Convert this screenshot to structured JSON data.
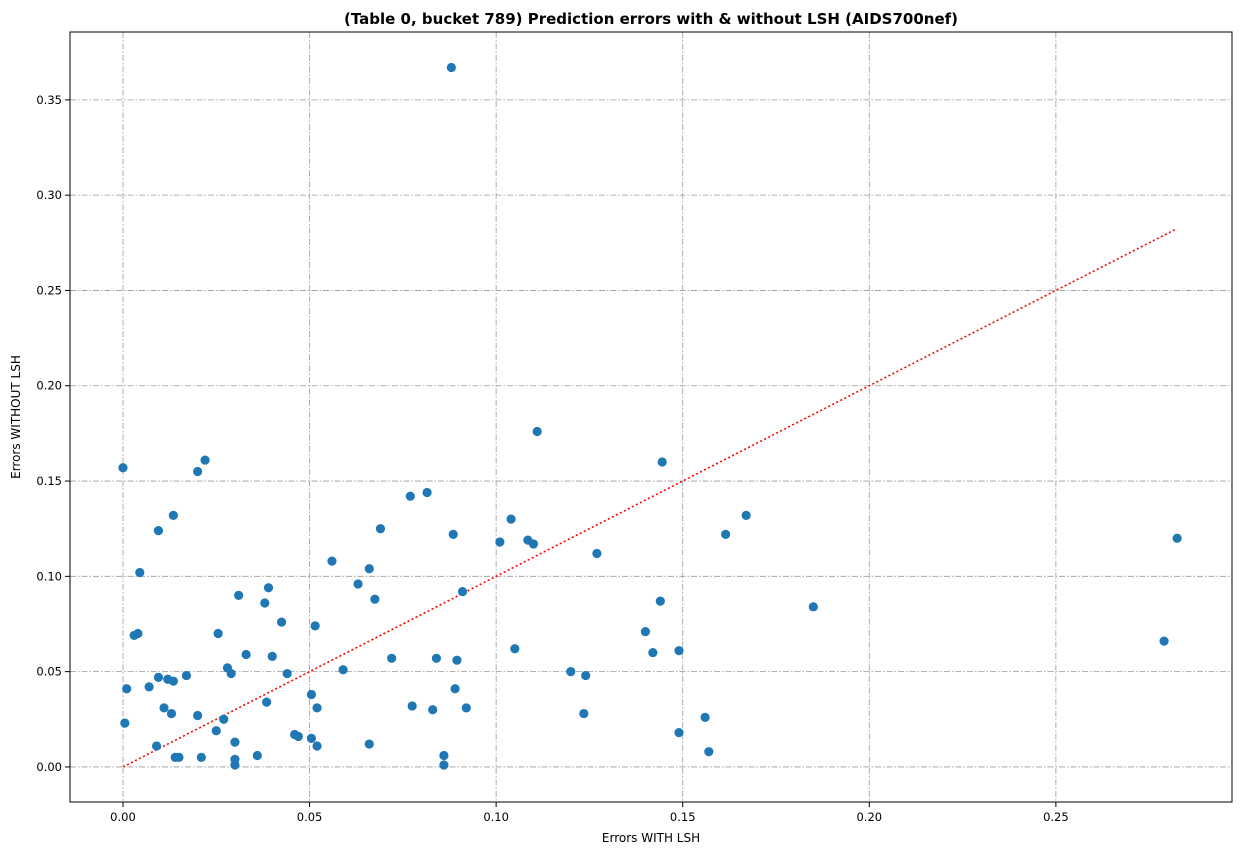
{
  "chart_data": {
    "type": "scatter",
    "title": "(Table 0, bucket 789) Prediction errors with & without LSH (AIDS700nef)",
    "xlabel": "Errors WITH LSH",
    "ylabel": "Errors WITHOUT LSH",
    "xlim": [
      -0.0142,
      0.2972
    ],
    "ylim": [
      -0.0184,
      0.3856
    ],
    "x_ticks": [
      0.0,
      0.05,
      0.1,
      0.15,
      0.2,
      0.25
    ],
    "x_tick_labels": [
      "0.00",
      "0.05",
      "0.10",
      "0.15",
      "0.20",
      "0.25"
    ],
    "y_ticks": [
      0.0,
      0.05,
      0.1,
      0.15,
      0.2,
      0.25,
      0.3,
      0.35
    ],
    "y_tick_labels": [
      "0.00",
      "0.05",
      "0.10",
      "0.15",
      "0.20",
      "0.25",
      "0.30",
      "0.35"
    ],
    "grid": true,
    "point_color": "#1f77b4",
    "reference_line": {
      "x": [
        0.0,
        0.282
      ],
      "y": [
        0.0,
        0.282
      ],
      "color": "#ff0000",
      "style": "dotted"
    },
    "points": [
      [
        0.0,
        0.157
      ],
      [
        0.0005,
        0.023
      ],
      [
        0.001,
        0.041
      ],
      [
        0.003,
        0.069
      ],
      [
        0.004,
        0.07
      ],
      [
        0.0045,
        0.102
      ],
      [
        0.007,
        0.042
      ],
      [
        0.009,
        0.011
      ],
      [
        0.0095,
        0.047
      ],
      [
        0.0095,
        0.124
      ],
      [
        0.011,
        0.031
      ],
      [
        0.012,
        0.046
      ],
      [
        0.013,
        0.028
      ],
      [
        0.0135,
        0.132
      ],
      [
        0.0135,
        0.045
      ],
      [
        0.014,
        0.005
      ],
      [
        0.015,
        0.005
      ],
      [
        0.017,
        0.048
      ],
      [
        0.02,
        0.155
      ],
      [
        0.02,
        0.027
      ],
      [
        0.021,
        0.005
      ],
      [
        0.022,
        0.161
      ],
      [
        0.025,
        0.019
      ],
      [
        0.0255,
        0.07
      ],
      [
        0.027,
        0.025
      ],
      [
        0.028,
        0.052
      ],
      [
        0.029,
        0.049
      ],
      [
        0.03,
        0.004
      ],
      [
        0.03,
        0.013
      ],
      [
        0.03,
        0.001
      ],
      [
        0.031,
        0.09
      ],
      [
        0.033,
        0.059
      ],
      [
        0.036,
        0.006
      ],
      [
        0.038,
        0.086
      ],
      [
        0.0385,
        0.034
      ],
      [
        0.039,
        0.094
      ],
      [
        0.04,
        0.058
      ],
      [
        0.0425,
        0.076
      ],
      [
        0.044,
        0.049
      ],
      [
        0.046,
        0.017
      ],
      [
        0.047,
        0.016
      ],
      [
        0.0505,
        0.015
      ],
      [
        0.0505,
        0.038
      ],
      [
        0.0515,
        0.074
      ],
      [
        0.052,
        0.031
      ],
      [
        0.052,
        0.011
      ],
      [
        0.056,
        0.108
      ],
      [
        0.059,
        0.051
      ],
      [
        0.063,
        0.096
      ],
      [
        0.066,
        0.104
      ],
      [
        0.066,
        0.012
      ],
      [
        0.0675,
        0.088
      ],
      [
        0.069,
        0.125
      ],
      [
        0.072,
        0.057
      ],
      [
        0.077,
        0.142
      ],
      [
        0.0775,
        0.032
      ],
      [
        0.0815,
        0.144
      ],
      [
        0.083,
        0.03
      ],
      [
        0.084,
        0.057
      ],
      [
        0.086,
        0.006
      ],
      [
        0.086,
        0.001
      ],
      [
        0.088,
        0.367
      ],
      [
        0.0885,
        0.122
      ],
      [
        0.089,
        0.041
      ],
      [
        0.0895,
        0.056
      ],
      [
        0.091,
        0.092
      ],
      [
        0.092,
        0.031
      ],
      [
        0.101,
        0.118
      ],
      [
        0.104,
        0.13
      ],
      [
        0.105,
        0.062
      ],
      [
        0.1085,
        0.119
      ],
      [
        0.11,
        0.117
      ],
      [
        0.111,
        0.176
      ],
      [
        0.12,
        0.05
      ],
      [
        0.1235,
        0.028
      ],
      [
        0.124,
        0.048
      ],
      [
        0.127,
        0.112
      ],
      [
        0.14,
        0.071
      ],
      [
        0.142,
        0.06
      ],
      [
        0.144,
        0.087
      ],
      [
        0.1445,
        0.16
      ],
      [
        0.149,
        0.018
      ],
      [
        0.149,
        0.061
      ],
      [
        0.156,
        0.026
      ],
      [
        0.157,
        0.008
      ],
      [
        0.1615,
        0.122
      ],
      [
        0.167,
        0.132
      ],
      [
        0.185,
        0.084
      ],
      [
        0.279,
        0.066
      ],
      [
        0.2825,
        0.12
      ]
    ]
  }
}
